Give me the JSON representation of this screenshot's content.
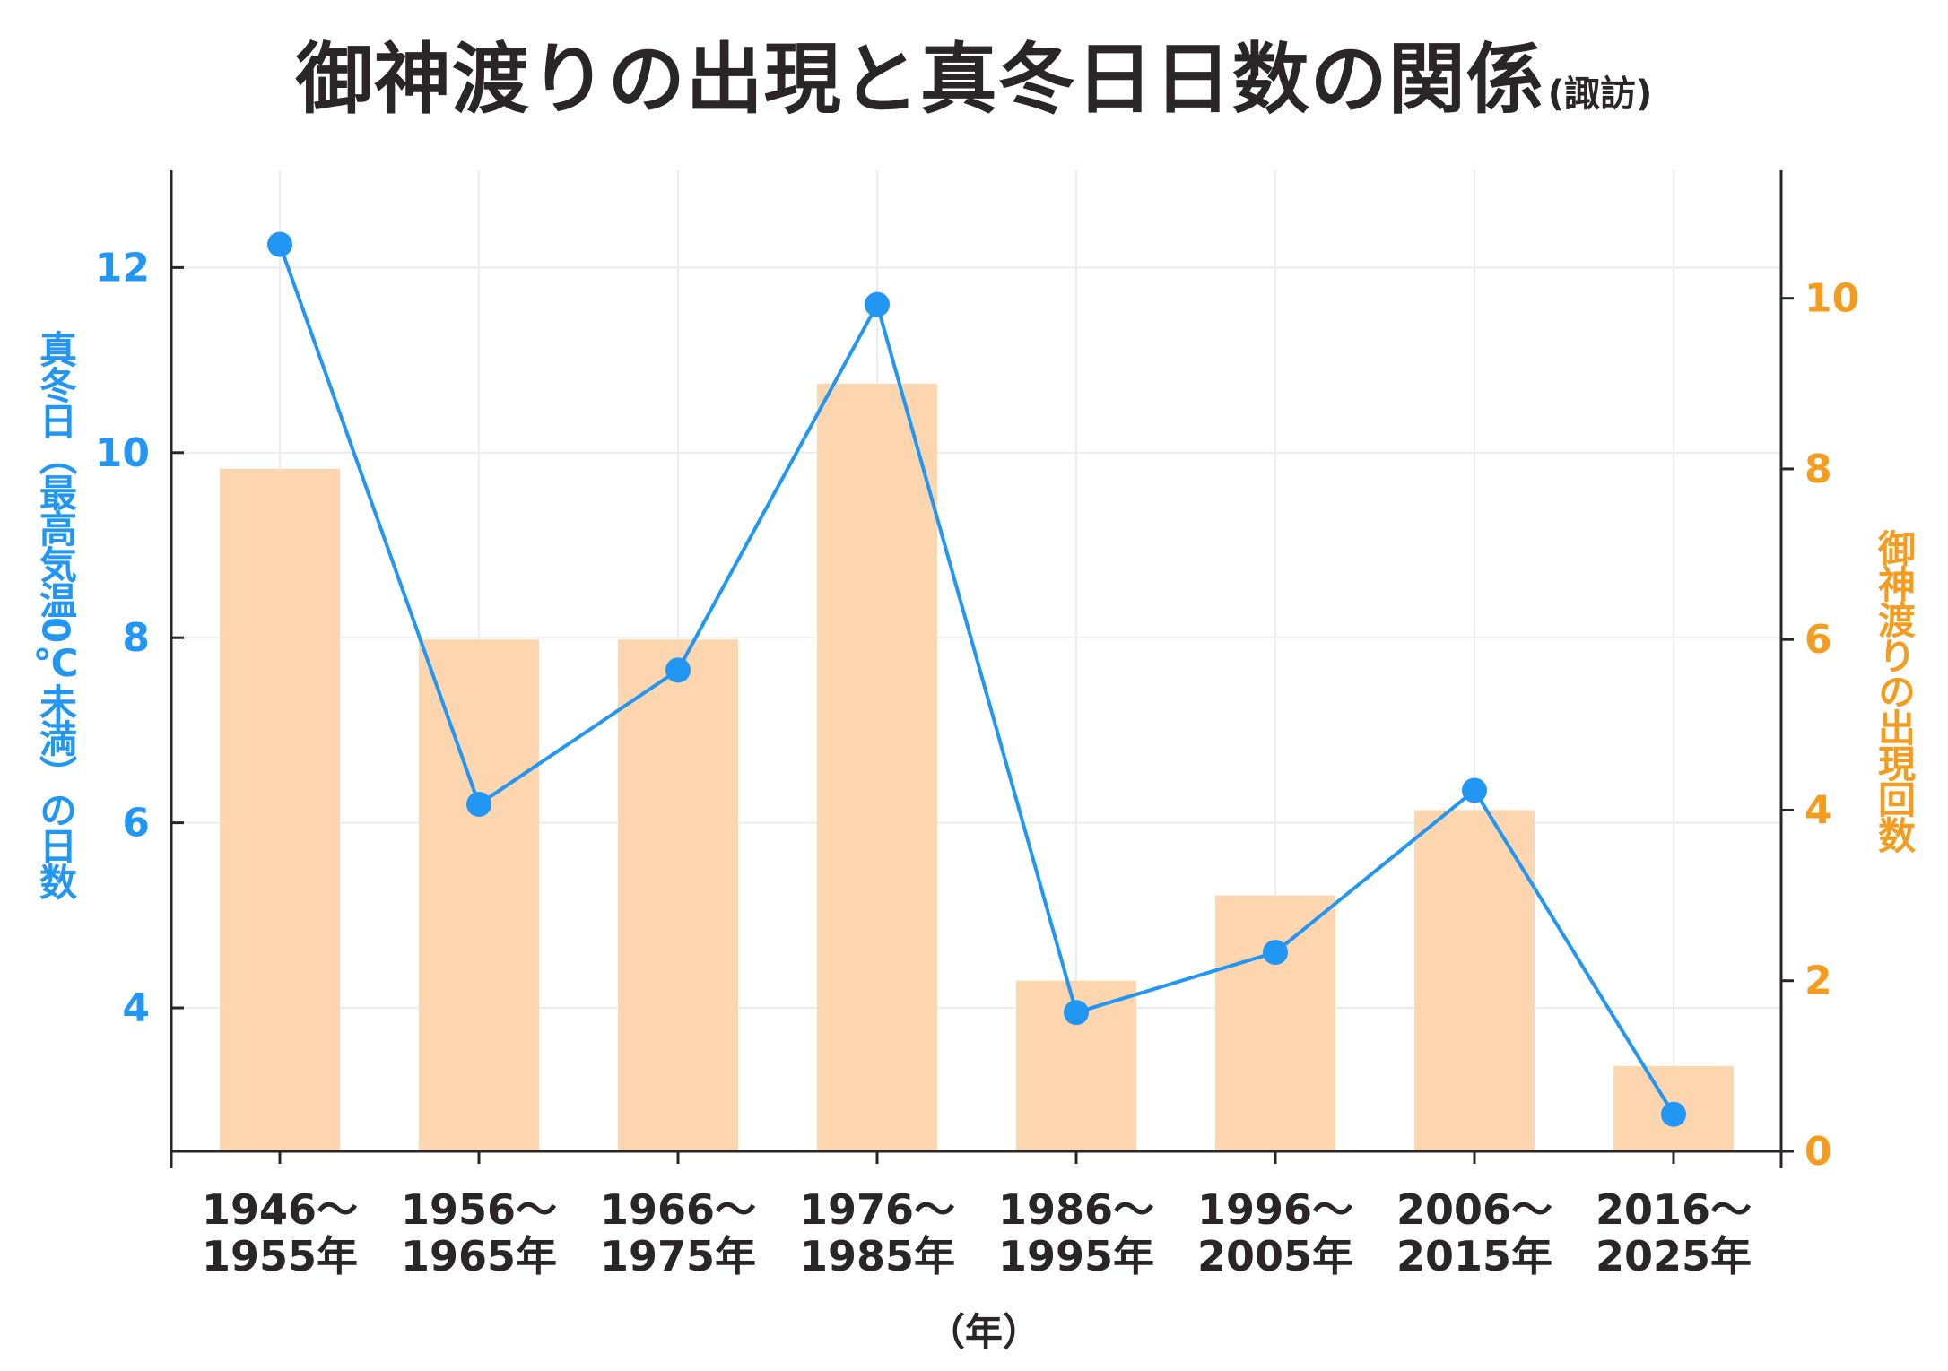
{
  "chart_data": {
    "type": "bar+line",
    "title": "御神渡りの出現と真冬日日数の関係",
    "subtitle": "(諏訪)",
    "categories": [
      [
        "1946〜",
        "1955年"
      ],
      [
        "1956〜",
        "1965年"
      ],
      [
        "1966〜",
        "1975年"
      ],
      [
        "1976〜",
        "1985年"
      ],
      [
        "1986〜",
        "1995年"
      ],
      [
        "1996〜",
        "2005年"
      ],
      [
        "2006〜",
        "2015年"
      ],
      [
        "2016〜",
        "2025年"
      ]
    ],
    "series": [
      {
        "name": "御神渡りの出現回数",
        "type": "bar",
        "axis": "right",
        "color": "#fdd5ae",
        "values": [
          8,
          6,
          6,
          9,
          2,
          3,
          4,
          1
        ]
      },
      {
        "name": "真冬日日数",
        "type": "line",
        "axis": "left",
        "color": "#2196f3",
        "values": [
          12.25,
          6.2,
          7.65,
          11.6,
          3.95,
          4.6,
          6.35,
          2.85
        ]
      }
    ],
    "left_axis": {
      "label": "真冬日（最高気温0℃未満）の日数",
      "range": [
        2.45,
        13.05
      ],
      "ticks": [
        4,
        6,
        8,
        10,
        12
      ]
    },
    "right_axis": {
      "label": "御神渡りの出現回数",
      "range": [
        0,
        11.5
      ],
      "ticks": [
        0,
        2,
        4,
        6,
        8,
        10
      ]
    },
    "xlabel": "（年）",
    "grid": true
  }
}
